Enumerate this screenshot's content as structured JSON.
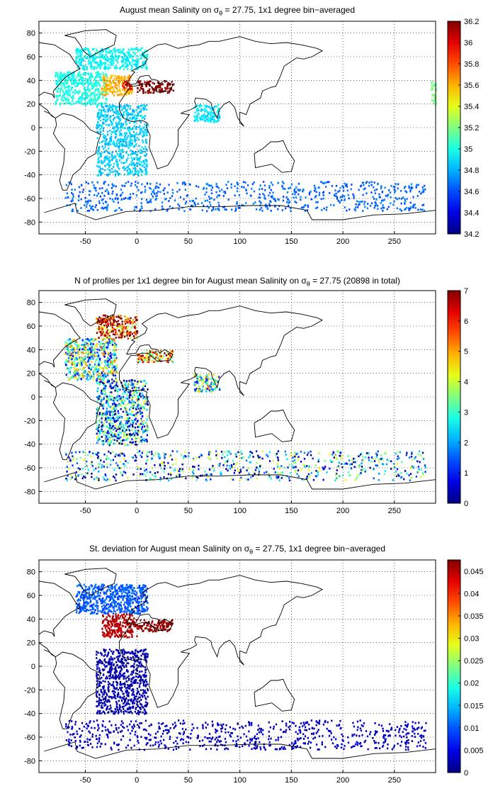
{
  "panels": [
    {
      "title_pre": "August mean Salinity on ",
      "title_sym": "σ",
      "title_sub": "θ",
      "title_post": " = 27.75, 1x1 degree bin−averaged",
      "colorbar_ticks": [
        "34.2",
        "34.4",
        "34.6",
        "34.8",
        "35",
        "35.2",
        "35.4",
        "35.6",
        "35.8",
        "36",
        "36.2"
      ]
    },
    {
      "title_pre": "N of profiles per 1x1 degree bin for August mean Salinity on ",
      "title_sym": "σ",
      "title_sub": "θ",
      "title_post": " = 27.75 (20898 in total)",
      "colorbar_ticks": [
        "0",
        "1",
        "2",
        "3",
        "4",
        "5",
        "6",
        "7"
      ]
    },
    {
      "title_pre": "St. deviation for August mean Salinity on ",
      "title_sym": "σ",
      "title_sub": "θ",
      "title_post": " = 27.75, 1x1 degree bin−averaged",
      "colorbar_ticks": [
        "0",
        "0.005",
        "0.01",
        "0.015",
        "0.02",
        "0.025",
        "0.03",
        "0.035",
        "0.04",
        "0.045"
      ]
    }
  ],
  "chart_data": [
    {
      "type": "heatmap",
      "title": "August mean Salinity on σθ = 27.75, 1x1 degree bin−averaged",
      "x_ticks": [
        -50,
        0,
        50,
        100,
        150,
        200,
        250
      ],
      "y_ticks": [
        -80,
        -60,
        -40,
        -20,
        0,
        20,
        40,
        60,
        80
      ],
      "xlim": [
        -95,
        290
      ],
      "ylim": [
        -90,
        90
      ],
      "grid": true,
      "colormap": "jet",
      "clim": [
        34.2,
        36.2
      ],
      "colorbar_ticks": [
        34.2,
        34.4,
        34.6,
        34.8,
        35,
        35.2,
        35.4,
        35.6,
        35.8,
        36,
        36.2
      ],
      "regions": [
        {
          "lon": [
            -60,
            10
          ],
          "lat": [
            50,
            68
          ],
          "value": 34.95
        },
        {
          "lon": [
            -80,
            -30
          ],
          "lat": [
            20,
            48
          ],
          "value": 35.0
        },
        {
          "lon": [
            -35,
            -5
          ],
          "lat": [
            28,
            45
          ],
          "value": 35.6
        },
        {
          "lon": [
            -15,
            -5
          ],
          "lat": [
            33,
            40
          ],
          "value": 36.0
        },
        {
          "lon": [
            0,
            35
          ],
          "lat": [
            30,
            40
          ],
          "value": 36.2
        },
        {
          "lon": [
            -40,
            10
          ],
          "lat": [
            -40,
            20
          ],
          "value": 34.85
        },
        {
          "lon": [
            -70,
            280
          ],
          "lat": [
            -70,
            -45
          ],
          "value": 34.65
        },
        {
          "lon": [
            55,
            80
          ],
          "lat": [
            5,
            20
          ],
          "value": 34.9
        },
        {
          "lon": [
            285,
            290
          ],
          "lat": [
            20,
            40
          ],
          "value": 35.2
        }
      ]
    },
    {
      "type": "heatmap",
      "title": "N of profiles per 1x1 degree bin for August mean Salinity on σθ = 27.75 (20898 in total)",
      "x_ticks": [
        -50,
        0,
        50,
        100,
        150,
        200,
        250
      ],
      "y_ticks": [
        -80,
        -60,
        -40,
        -20,
        0,
        20,
        40,
        60,
        80
      ],
      "xlim": [
        -95,
        290
      ],
      "ylim": [
        -90,
        90
      ],
      "grid": true,
      "colormap": "jet",
      "clim": [
        0,
        7
      ],
      "colorbar_ticks": [
        0,
        1,
        2,
        3,
        4,
        5,
        6,
        7
      ],
      "total_profiles": 20898,
      "regions": [
        {
          "lon": [
            -40,
            0
          ],
          "lat": [
            50,
            70
          ],
          "value": 6
        },
        {
          "lon": [
            -70,
            -20
          ],
          "lat": [
            15,
            50
          ],
          "value": 3
        },
        {
          "lon": [
            0,
            35
          ],
          "lat": [
            30,
            40
          ],
          "value": 5
        },
        {
          "lon": [
            -40,
            10
          ],
          "lat": [
            -40,
            15
          ],
          "value": 2
        },
        {
          "lon": [
            -70,
            280
          ],
          "lat": [
            -70,
            -45
          ],
          "value": 2
        },
        {
          "lon": [
            55,
            80
          ],
          "lat": [
            5,
            20
          ],
          "value": 3
        }
      ]
    },
    {
      "type": "heatmap",
      "title": "St. deviation for August mean Salinity on σθ = 27.75, 1x1 degree bin−averaged",
      "x_ticks": [
        -50,
        0,
        50,
        100,
        150,
        200,
        250
      ],
      "y_ticks": [
        -80,
        -60,
        -40,
        -20,
        0,
        20,
        40,
        60,
        80
      ],
      "xlim": [
        -95,
        290
      ],
      "ylim": [
        -90,
        90
      ],
      "grid": true,
      "colormap": "jet",
      "clim": [
        0,
        0.0475
      ],
      "colorbar_ticks": [
        0,
        0.005,
        0.01,
        0.015,
        0.02,
        0.025,
        0.03,
        0.035,
        0.04,
        0.045
      ],
      "regions": [
        {
          "lon": [
            -60,
            10
          ],
          "lat": [
            45,
            70
          ],
          "value": 0.01
        },
        {
          "lon": [
            -35,
            0
          ],
          "lat": [
            25,
            45
          ],
          "value": 0.045
        },
        {
          "lon": [
            0,
            35
          ],
          "lat": [
            30,
            40
          ],
          "value": 0.047
        },
        {
          "lon": [
            -40,
            10
          ],
          "lat": [
            -40,
            15
          ],
          "value": 0.002
        },
        {
          "lon": [
            -70,
            280
          ],
          "lat": [
            -70,
            -45
          ],
          "value": 0.003
        }
      ]
    }
  ]
}
